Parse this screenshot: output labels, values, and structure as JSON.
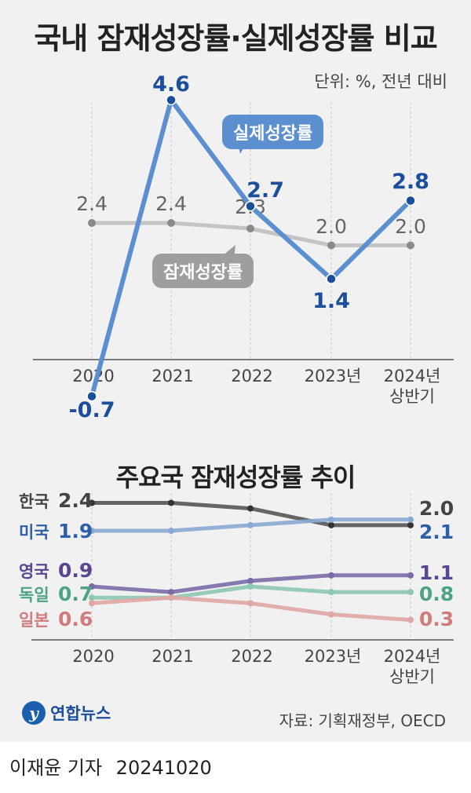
{
  "title": "국내 잠재성장률·실제성장률 비교",
  "unit": "단위: %, 전년 대비",
  "colors": {
    "real": "#5b8fd0",
    "potential": "#c4c4c4",
    "korea": "#555555",
    "usa": "#8aa9d4",
    "uk": "#7b6aa8",
    "germany": "#8cc7b0",
    "japan": "#e0a5a5"
  },
  "chart_data": [
    {
      "type": "line",
      "title": "국내 잠재성장률·실제성장률 비교",
      "categories": [
        "2020",
        "2021",
        "2022",
        "2023년",
        "2024년 상반기"
      ],
      "tick_labels": [
        {
          "line1": "2020",
          "line2": ""
        },
        {
          "line1": "2021",
          "line2": ""
        },
        {
          "line1": "2022",
          "line2": ""
        },
        {
          "line1": "2023년",
          "line2": ""
        },
        {
          "line1": "2024년",
          "line2": "상반기"
        }
      ],
      "series": [
        {
          "name": "실제성장률",
          "values": [
            -0.7,
            4.6,
            2.7,
            1.4,
            2.8
          ],
          "labels": [
            "-0.7",
            "4.6",
            "2.7",
            "1.4",
            "2.8"
          ]
        },
        {
          "name": "잠재성장률",
          "values": [
            2.4,
            2.4,
            2.3,
            2.0,
            2.0
          ],
          "labels": [
            "2.4",
            "2.4",
            "2.3",
            "2.0",
            "2.0"
          ]
        }
      ],
      "ylabel": "%"
    },
    {
      "type": "line",
      "title": "주요국 잠재성장률 추이",
      "categories": [
        "2020",
        "2021",
        "2022",
        "2023년",
        "2024년 상반기"
      ],
      "series": [
        {
          "name": "한국",
          "values": [
            2.4,
            2.4,
            2.3,
            2.0,
            2.0
          ],
          "start_label": "2.4",
          "end_label": "2.0"
        },
        {
          "name": "미국",
          "values": [
            1.9,
            1.9,
            2.0,
            2.1,
            2.1
          ],
          "start_label": "1.9",
          "end_label": "2.1"
        },
        {
          "name": "영국",
          "values": [
            0.9,
            0.8,
            1.0,
            1.1,
            1.1
          ],
          "start_label": "0.9",
          "end_label": "1.1"
        },
        {
          "name": "독일",
          "values": [
            0.7,
            0.7,
            0.9,
            0.8,
            0.8
          ],
          "start_label": "0.7",
          "end_label": "0.8"
        },
        {
          "name": "일본",
          "values": [
            0.6,
            0.7,
            0.6,
            0.4,
            0.3
          ],
          "start_label": "0.6",
          "end_label": "0.3"
        }
      ]
    }
  ],
  "subtitle": "주요국 잠재성장률 추이",
  "source": "자료: 기획재정부, OECD",
  "logo": {
    "mark": "y",
    "text": "연합뉴스"
  },
  "credit": {
    "author": "이재윤 기자",
    "date": "20241020"
  }
}
